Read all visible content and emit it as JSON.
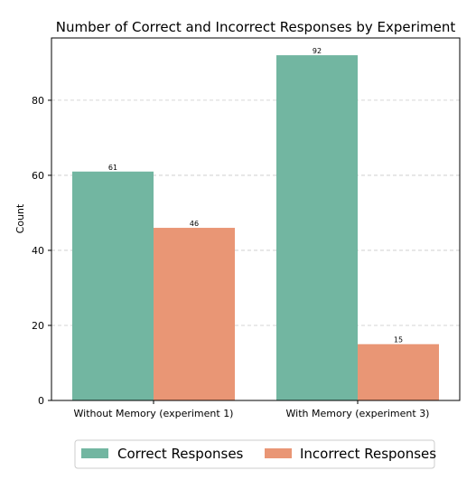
{
  "chart_data": {
    "type": "bar",
    "title": "Number of Correct and Incorrect Responses by Experiment",
    "xlabel": "",
    "ylabel": "Count",
    "categories": [
      "Without Memory (experiment 1)",
      "With Memory (experiment 3)"
    ],
    "series": [
      {
        "name": "Correct Responses",
        "values": [
          61,
          92
        ],
        "color": "#72b6a1"
      },
      {
        "name": "Incorrect Responses",
        "values": [
          46,
          15
        ],
        "color": "#e99675"
      }
    ],
    "ylim": [
      0,
      96.6
    ],
    "yticks": [
      0,
      20,
      40,
      60,
      80
    ],
    "grid": "horizontal-dashed",
    "legend_position": "bottom-center"
  }
}
